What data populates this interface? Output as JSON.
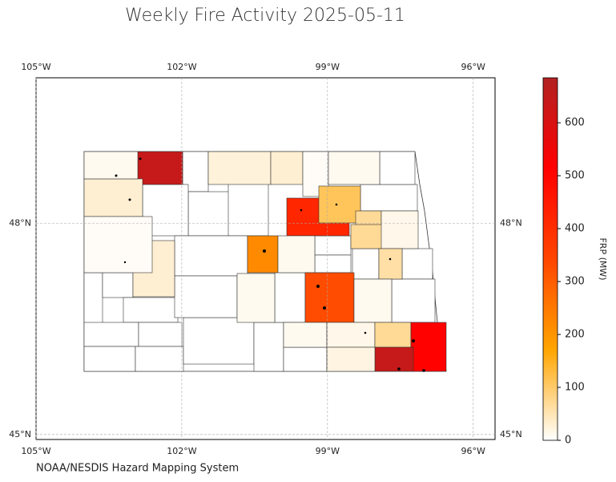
{
  "chart_data": {
    "type": "choropleth",
    "title": "Weekly Fire Activity 2025-05-11",
    "xticks": [
      {
        "value": -105,
        "label": "105°W"
      },
      {
        "value": -102,
        "label": "102°W"
      },
      {
        "value": -99,
        "label": "99°W"
      },
      {
        "value": -96,
        "label": "96°W"
      }
    ],
    "yticks": [
      {
        "value": 48,
        "label": "48°N"
      },
      {
        "value": 45,
        "label": "45°N"
      }
    ],
    "xlim": [
      -105,
      -95.55
    ],
    "ylim": [
      44.93,
      50.07
    ],
    "grid": true,
    "regions": {
      "values": [
        640,
        30,
        10,
        25,
        30,
        5,
        10,
        420,
        110,
        70,
        70,
        15,
        220,
        10,
        30,
        5,
        60,
        330,
        10,
        10,
        10,
        15,
        70,
        510,
        640,
        20
      ]
    },
    "colorbar": {
      "label": "FRP (MW)",
      "lim": [
        0,
        685
      ],
      "ticks": [
        0,
        100,
        200,
        300,
        400,
        500,
        600
      ],
      "colormap": [
        "#ffffff",
        "#ffa500",
        "#ff4500",
        "#ff0000",
        "#b22222"
      ]
    },
    "source": "NOAA/NESDIS Hazard Mapping System"
  }
}
